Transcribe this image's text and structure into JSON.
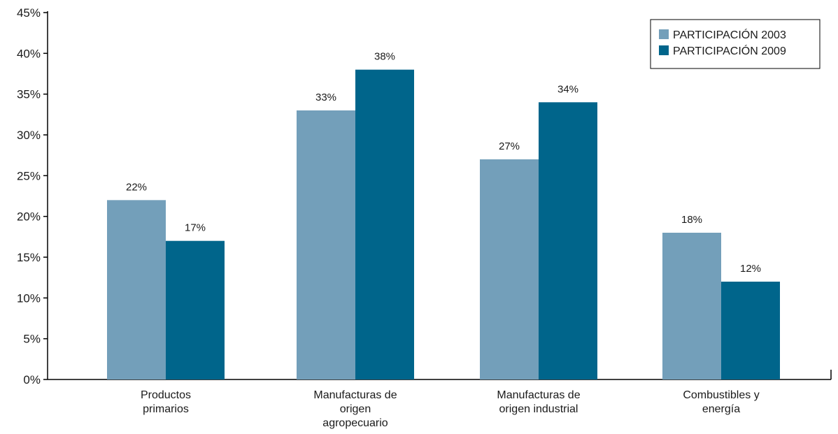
{
  "chart_data": {
    "type": "bar",
    "categories": [
      [
        "Productos",
        "primarios"
      ],
      [
        "Manufacturas de",
        "origen",
        "agropecuario"
      ],
      [
        "Manufacturas de",
        "origen industrial"
      ],
      [
        "Combustibles y",
        "energía"
      ]
    ],
    "series": [
      {
        "name": "PARTICIPACIÓN 2003",
        "values": [
          22,
          33,
          27,
          18
        ],
        "color": "#739fba"
      },
      {
        "name": "PARTICIPACIÓN 2009",
        "values": [
          17,
          38,
          34,
          12
        ],
        "color": "#00658b"
      }
    ],
    "value_suffix": "%",
    "ylim": [
      0,
      45
    ],
    "yticks": [
      0,
      5,
      10,
      15,
      20,
      25,
      30,
      35,
      40,
      45
    ],
    "grid": false,
    "legend_position": "top-right",
    "title": "",
    "xlabel": "",
    "ylabel": ""
  }
}
